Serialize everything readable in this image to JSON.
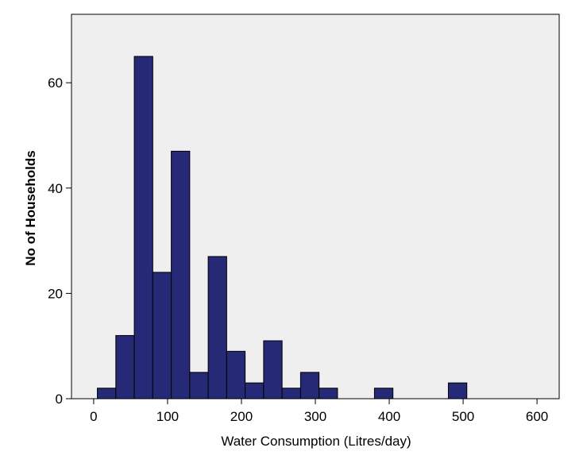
{
  "chart_data": {
    "type": "bar",
    "subtype": "histogram",
    "xlabel": "Water Consumption (Litres/day)",
    "ylabel": "No of Households",
    "xlim": [
      -30,
      630
    ],
    "ylim": [
      0,
      73
    ],
    "xticks": [
      0,
      100,
      200,
      300,
      400,
      500,
      600
    ],
    "yticks": [
      0,
      20,
      40,
      60
    ],
    "bin_width": 25,
    "bins": [
      {
        "start": 5,
        "end": 30,
        "count": 2
      },
      {
        "start": 30,
        "end": 55,
        "count": 12
      },
      {
        "start": 55,
        "end": 80,
        "count": 65
      },
      {
        "start": 80,
        "end": 105,
        "count": 24
      },
      {
        "start": 105,
        "end": 130,
        "count": 47
      },
      {
        "start": 130,
        "end": 155,
        "count": 5
      },
      {
        "start": 155,
        "end": 180,
        "count": 27
      },
      {
        "start": 180,
        "end": 205,
        "count": 9
      },
      {
        "start": 205,
        "end": 230,
        "count": 3
      },
      {
        "start": 230,
        "end": 255,
        "count": 11
      },
      {
        "start": 255,
        "end": 280,
        "count": 2
      },
      {
        "start": 280,
        "end": 305,
        "count": 5
      },
      {
        "start": 305,
        "end": 330,
        "count": 2
      },
      {
        "start": 380,
        "end": 405,
        "count": 2
      },
      {
        "start": 480,
        "end": 505,
        "count": 3
      }
    ],
    "grid": false,
    "colors": {
      "bar_fill": "#262A76",
      "bar_edge": "#000000",
      "plot_background": "#EFEFEF",
      "frame": "#000000"
    }
  }
}
